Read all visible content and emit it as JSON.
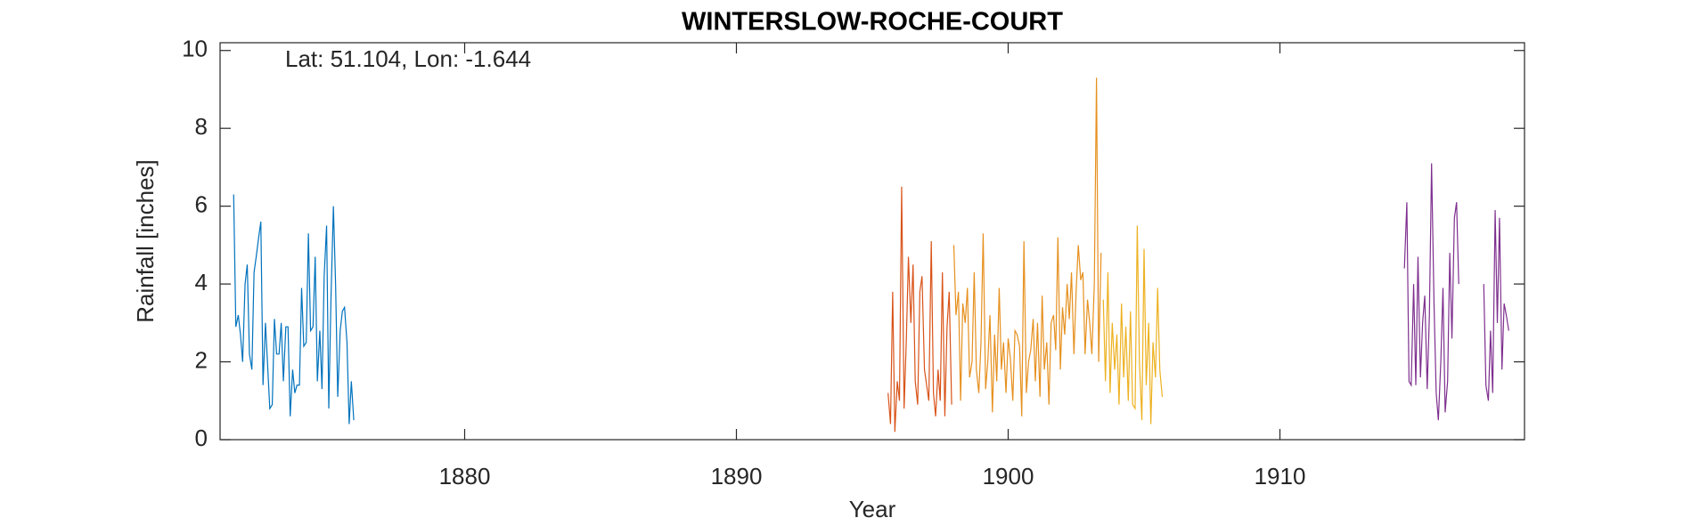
{
  "chart_data": {
    "type": "line",
    "title": "WINTERSLOW-ROCHE-COURT",
    "annotation": "Lat: 51.104, Lon: -1.644",
    "xlabel": "Year",
    "ylabel": "Rainfall [inches]",
    "xlim": [
      1871,
      1919
    ],
    "xticks": [
      1880,
      1890,
      1900,
      1910
    ],
    "ylim": [
      0,
      10.2
    ],
    "yticks": [
      0,
      2,
      4,
      6,
      8,
      10
    ],
    "series": [
      {
        "color": "#0072BD",
        "x": [
          1871.5,
          1871.58,
          1871.67,
          1871.75,
          1871.83,
          1871.92,
          1872.0,
          1872.08,
          1872.17,
          1872.25,
          1872.33,
          1872.42,
          1872.5,
          1872.58,
          1872.67,
          1872.75,
          1872.83,
          1872.92,
          1873.0,
          1873.08,
          1873.17,
          1873.25,
          1873.33,
          1873.42,
          1873.5,
          1873.58,
          1873.67,
          1873.75,
          1873.83,
          1873.92,
          1874.0,
          1874.08,
          1874.17,
          1874.25,
          1874.33,
          1874.42,
          1874.5,
          1874.58,
          1874.67,
          1874.75,
          1874.83,
          1874.92,
          1875.0,
          1875.08,
          1875.17,
          1875.25,
          1875.33,
          1875.42,
          1875.5,
          1875.58,
          1875.67,
          1875.75,
          1875.83,
          1875.92
        ],
        "values": [
          6.3,
          2.9,
          3.2,
          2.7,
          2.0,
          4.0,
          4.5,
          2.2,
          1.8,
          4.3,
          4.7,
          5.2,
          5.6,
          1.4,
          3.0,
          1.9,
          0.8,
          0.9,
          3.1,
          2.2,
          2.2,
          3.0,
          1.5,
          2.9,
          2.9,
          0.6,
          1.8,
          1.2,
          1.4,
          1.4,
          3.9,
          2.4,
          2.5,
          5.3,
          2.8,
          2.9,
          4.7,
          1.5,
          2.8,
          1.3,
          4.2,
          5.5,
          0.8,
          3.6,
          6.0,
          4.0,
          1.1,
          2.8,
          3.3,
          3.4,
          2.5,
          0.4,
          1.5,
          0.5
        ]
      },
      {
        "color": "#D95319",
        "x": [
          1895.58,
          1895.67,
          1895.75,
          1895.83,
          1895.92,
          1896.0,
          1896.08,
          1896.17,
          1896.25,
          1896.33,
          1896.42,
          1896.5,
          1896.58,
          1896.67,
          1896.75,
          1896.83,
          1896.92,
          1897.0,
          1897.08,
          1897.17,
          1897.25,
          1897.33,
          1897.42,
          1897.5,
          1897.58,
          1897.67,
          1897.75,
          1897.83,
          1897.92
        ],
        "values": [
          1.2,
          0.4,
          3.8,
          0.2,
          1.5,
          1.0,
          6.5,
          0.8,
          2.5,
          4.7,
          3.0,
          4.5,
          1.5,
          0.9,
          3.8,
          4.2,
          1.8,
          1.4,
          1.0,
          5.1,
          1.2,
          0.6,
          1.8,
          1.0,
          4.3,
          0.6,
          2.9,
          3.8,
          0.9
        ]
      },
      {
        "color": "#E6901E",
        "x": [
          1898.0,
          1898.08,
          1898.17,
          1898.25,
          1898.33,
          1898.42,
          1898.5,
          1898.58,
          1898.67,
          1898.75,
          1898.83,
          1898.92,
          1899.0,
          1899.08,
          1899.17,
          1899.25,
          1899.33,
          1899.42,
          1899.5,
          1899.58,
          1899.67,
          1899.75,
          1899.83,
          1899.92,
          1900.0,
          1900.08,
          1900.17,
          1900.25,
          1900.33,
          1900.42,
          1900.5,
          1900.58,
          1900.67,
          1900.75,
          1900.83,
          1900.92,
          1901.0,
          1901.08,
          1901.17,
          1901.25,
          1901.33,
          1901.42,
          1901.5,
          1901.58,
          1901.67,
          1901.75,
          1901.83,
          1901.92,
          1902.0,
          1902.08,
          1902.17,
          1902.25,
          1902.33,
          1902.42,
          1902.5,
          1902.58,
          1902.67,
          1902.75,
          1902.83,
          1902.92,
          1903.0,
          1903.08,
          1903.17,
          1903.25,
          1903.33,
          1903.42
        ],
        "values": [
          5.0,
          3.2,
          3.8,
          1.0,
          3.5,
          3.0,
          3.9,
          1.6,
          2.0,
          4.3,
          1.8,
          1.2,
          2.5,
          5.3,
          1.3,
          2.0,
          3.2,
          0.7,
          2.7,
          1.5,
          3.9,
          1.8,
          2.5,
          1.2,
          2.6,
          2.1,
          1.0,
          2.8,
          2.7,
          2.4,
          0.6,
          5.1,
          1.2,
          2.0,
          2.3,
          3.1,
          1.5,
          3.0,
          1.1,
          3.7,
          1.8,
          2.5,
          0.9,
          3.0,
          3.2,
          2.3,
          5.2,
          1.8,
          3.4,
          2.7,
          4.0,
          3.1,
          4.3,
          2.2,
          3.8,
          5.0,
          4.1,
          4.3,
          2.2,
          3.6,
          3.0,
          2.2,
          4.0,
          9.3,
          2.0,
          4.8
        ]
      },
      {
        "color": "#EDB120",
        "x": [
          1903.5,
          1903.58,
          1903.67,
          1903.75,
          1903.83,
          1903.92,
          1904.0,
          1904.08,
          1904.17,
          1904.25,
          1904.33,
          1904.42,
          1904.5,
          1904.58,
          1904.67,
          1904.75,
          1904.83,
          1904.92,
          1905.0,
          1905.08,
          1905.17,
          1905.25,
          1905.33,
          1905.42,
          1905.5,
          1905.58,
          1905.67
        ],
        "values": [
          3.6,
          1.5,
          4.3,
          1.2,
          3.0,
          1.8,
          2.7,
          0.9,
          3.5,
          1.6,
          2.9,
          1.0,
          3.3,
          0.9,
          0.8,
          5.5,
          2.0,
          0.5,
          4.9,
          1.4,
          3.0,
          0.4,
          2.5,
          1.6,
          3.9,
          1.8,
          1.1
        ]
      },
      {
        "color": "#7E2F8E",
        "x": [
          1914.58,
          1914.67,
          1914.75,
          1914.83,
          1914.92,
          1915.0,
          1915.08,
          1915.17,
          1915.25,
          1915.33,
          1915.42,
          1915.5,
          1915.58,
          1915.67,
          1915.75,
          1915.83,
          1915.92,
          1916.0,
          1916.08,
          1916.17,
          1916.25,
          1916.33,
          1916.42,
          1916.5,
          1916.58,
          1917.0,
          1917.5,
          1917.58,
          1917.67,
          1917.75,
          1917.83,
          1917.92,
          1918.0,
          1918.08,
          1918.17,
          1918.25,
          1918.33,
          1918.42
        ],
        "values": [
          4.4,
          6.1,
          1.5,
          1.4,
          4.0,
          1.4,
          4.7,
          1.6,
          3.0,
          3.7,
          1.3,
          3.2,
          7.1,
          3.5,
          1.2,
          0.5,
          2.0,
          3.9,
          0.7,
          1.5,
          4.8,
          2.6,
          5.7,
          6.1,
          4.0,
          null,
          4.0,
          1.4,
          1.0,
          2.8,
          1.2,
          5.9,
          3.0,
          5.7,
          1.8,
          3.5,
          3.2,
          2.8
        ]
      }
    ]
  }
}
